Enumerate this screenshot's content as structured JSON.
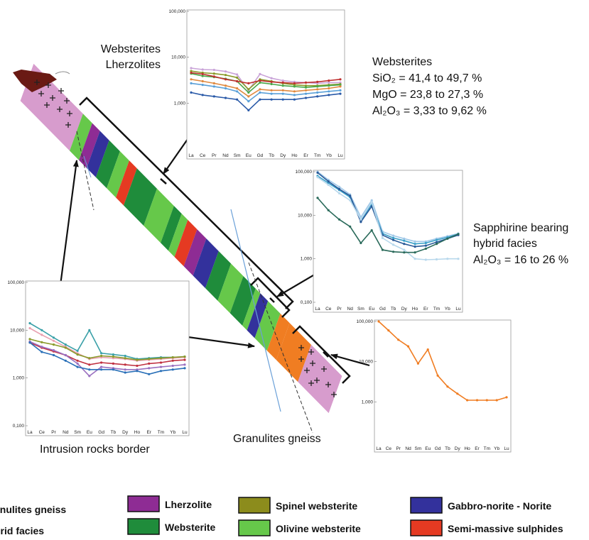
{
  "labels": {
    "websterites_lherzolites": [
      "Websterites",
      "Lherzolites"
    ],
    "websterites_block": [
      "Websterites",
      "SiO₂ = 41,4 to 49,7 %",
      "MgO = 23,8 to 27,3 %",
      "Al₂O₃ = 3,33 to 9,62 %"
    ],
    "sapphirine_block": [
      "Sapphirine bearing",
      "hybrid facies",
      "Al₂O₃ = 16 to 26 %"
    ],
    "intrusion_border": "Intrusion rocks border",
    "granulites_gneiss": "Granulites gneiss"
  },
  "legend": [
    {
      "label": "anulites gneiss",
      "color": "#d79ccd"
    },
    {
      "label": "Lherzolite",
      "color": "#8e2c94"
    },
    {
      "label": "Spinel websterite",
      "color": "#8c8c1c"
    },
    {
      "label": "Gabbro-norite - Norite",
      "color": "#33319c"
    },
    {
      "label": "brid facies",
      "color": "#f07d22"
    },
    {
      "label": "Websterite",
      "color": "#1f8c3b"
    },
    {
      "label": "Olivine websterite",
      "color": "#66c84a"
    },
    {
      "label": "Semi-massive sulphides",
      "color": "#e53a22"
    }
  ],
  "section_colors": [
    "#d79ccd",
    "#66c84a",
    "#8e2c94",
    "#33319c",
    "#1f8c3b",
    "#66c84a",
    "#e53a22",
    "#1f8c3b",
    "#66c84a",
    "#1f8c3b",
    "#66c84a",
    "#e53a22",
    "#8e2c94",
    "#33319c",
    "#1f8c3b",
    "#66c84a",
    "#1f8c3b",
    "#66c84a",
    "#33319c",
    "#66c84a",
    "#f07d22",
    "#f07d22",
    "#d79ccd"
  ],
  "chart_data": [
    {
      "id": "websterites",
      "type": "line",
      "x": [
        "La",
        "Ce",
        "Pr",
        "Nd",
        "Sm",
        "Eu",
        "Gd",
        "Tb",
        "Dy",
        "Ho",
        "Er",
        "Tm",
        "Yb",
        "Lu"
      ],
      "yticks": [
        "100,000",
        "10,000",
        "1,000"
      ],
      "ylim": [
        100,
        100000
      ],
      "yscale": "log",
      "series": [
        {
          "color": "#c9a3d8",
          "values": [
            5800,
            5400,
            5300,
            4900,
            4200,
            1900,
            4300,
            3500,
            3100,
            2900,
            2800,
            2700,
            2800,
            2800
          ]
        },
        {
          "color": "#8a9a2a",
          "values": [
            5000,
            4600,
            4400,
            4100,
            3600,
            2000,
            3300,
            3000,
            2700,
            2500,
            2400,
            2400,
            2500,
            2600
          ]
        },
        {
          "color": "#4aa84a",
          "values": [
            4400,
            3900,
            3700,
            3400,
            3000,
            1700,
            2800,
            2600,
            2400,
            2300,
            2200,
            2300,
            2400,
            2500
          ]
        },
        {
          "color": "#c03030",
          "values": [
            4600,
            4300,
            3800,
            3300,
            3000,
            2700,
            3100,
            2900,
            2800,
            2700,
            2800,
            2900,
            3100,
            3300
          ]
        },
        {
          "color": "#e08a40",
          "values": [
            3300,
            3000,
            2700,
            2400,
            2100,
            1400,
            2000,
            1900,
            1900,
            1800,
            1900,
            2000,
            2100,
            2300
          ]
        },
        {
          "color": "#5aa0d8",
          "values": [
            2700,
            2500,
            2300,
            2100,
            1800,
            1100,
            1700,
            1600,
            1600,
            1500,
            1600,
            1700,
            1800,
            1900
          ]
        },
        {
          "color": "#2a5aa8",
          "values": [
            1700,
            1500,
            1400,
            1300,
            1200,
            700,
            1200,
            1200,
            1200,
            1200,
            1300,
            1400,
            1500,
            1600
          ]
        }
      ]
    },
    {
      "id": "sapphirine",
      "type": "line",
      "x": [
        "La",
        "Ce",
        "Pr",
        "Nd",
        "Sm",
        "Eu",
        "Gd",
        "Tb",
        "Dy",
        "Ho",
        "Er",
        "Tm",
        "Yb",
        "Lu"
      ],
      "yticks": [
        "100,000",
        "10,000",
        "1,000",
        "0,100"
      ],
      "ylim": [
        100,
        100000
      ],
      "yscale": "log",
      "series": [
        {
          "color": "#a0c8e8",
          "values": [
            100000,
            65000,
            45000,
            30000,
            9000,
            22000,
            4200,
            3400,
            2900,
            2500,
            2500,
            2900,
            3300,
            3800
          ]
        },
        {
          "color": "#3aa0c8",
          "values": [
            80000,
            55000,
            38000,
            26000,
            7500,
            18000,
            3800,
            3000,
            2600,
            2200,
            2300,
            2700,
            3100,
            3700
          ]
        },
        {
          "color": "#2a5a98",
          "values": [
            95000,
            60000,
            40000,
            28000,
            7000,
            16000,
            3500,
            2700,
            2200,
            1900,
            2000,
            2400,
            2900,
            3500
          ]
        },
        {
          "color": "#b8d8ec",
          "values": [
            75000,
            50000,
            32000,
            22000,
            8000,
            20000,
            3000,
            2100,
            1600,
            1000,
            950,
            970,
            1000,
            1000
          ]
        },
        {
          "color": "#2a6a5a",
          "values": [
            25000,
            13000,
            8000,
            5500,
            2300,
            4500,
            1600,
            1450,
            1400,
            1400,
            1700,
            2200,
            2900,
            3700
          ]
        }
      ]
    },
    {
      "id": "intrusion",
      "type": "line",
      "x": [
        "La",
        "Ce",
        "Pr",
        "Nd",
        "Sm",
        "Eu",
        "Gd",
        "Tb",
        "Dy",
        "Ho",
        "Er",
        "Tm",
        "Yb",
        "Lu"
      ],
      "yticks": [
        "100,000",
        "10,000",
        "1,000",
        "0,100"
      ],
      "ylim": [
        100,
        100000
      ],
      "yscale": "log",
      "series": [
        {
          "color": "#3aa0a8",
          "values": [
            14000,
            10000,
            7000,
            5000,
            3700,
            10000,
            3300,
            3100,
            2900,
            2500,
            2600,
            2700,
            2700,
            2800
          ]
        },
        {
          "color": "#e8a0b0",
          "values": [
            11000,
            8000,
            6000,
            4500,
            3300,
            2500,
            2700,
            2600,
            2500,
            2300,
            2400,
            2500,
            2600,
            2700
          ]
        },
        {
          "color": "#8a9a2a",
          "values": [
            6500,
            5600,
            5000,
            4300,
            3100,
            2600,
            2900,
            2800,
            2600,
            2400,
            2500,
            2600,
            2700,
            2800
          ]
        },
        {
          "color": "#c03040",
          "values": [
            5500,
            4300,
            3600,
            3000,
            2300,
            1900,
            2100,
            2000,
            1900,
            1800,
            2000,
            2100,
            2300,
            2400
          ]
        },
        {
          "color": "#9a70c0",
          "values": [
            5800,
            4500,
            3800,
            3000,
            2000,
            1100,
            1700,
            1600,
            1500,
            1500,
            1600,
            1700,
            1800,
            1900
          ]
        },
        {
          "color": "#2a70b8",
          "values": [
            5500,
            3500,
            3000,
            2300,
            1700,
            1500,
            1500,
            1500,
            1300,
            1400,
            1200,
            1400,
            1500,
            1600
          ]
        }
      ]
    },
    {
      "id": "granulites",
      "type": "line",
      "x": [
        "La",
        "Ce",
        "Pr",
        "Nd",
        "Sm",
        "Eu",
        "Gd",
        "Tb",
        "Dy",
        "Ho",
        "Er",
        "Tm",
        "Yb",
        "Lu"
      ],
      "yticks": [
        "100,000",
        "10,000",
        "1,000"
      ],
      "ylim": [
        100,
        100000
      ],
      "yscale": "log",
      "series": [
        {
          "color": "#f07d22",
          "values": [
            100000,
            60000,
            35000,
            24000,
            9000,
            20000,
            4500,
            2400,
            1600,
            1100,
            1100,
            1100,
            1100,
            1300
          ]
        }
      ]
    }
  ]
}
